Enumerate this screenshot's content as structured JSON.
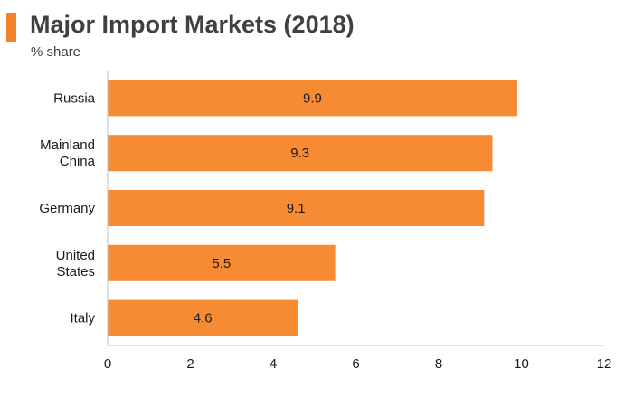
{
  "colors": {
    "accent": "#f5812a",
    "bar": "#f68b33",
    "axis": "#c0c0c0",
    "text": "#404040"
  },
  "chart_data": {
    "type": "bar",
    "orientation": "horizontal",
    "title": "Major Import Markets (2018)",
    "subtitle": "% share",
    "categories": [
      "Russia",
      "Mainland China",
      "Germany",
      "United States",
      "Italy"
    ],
    "category_lines": [
      [
        "Russia"
      ],
      [
        "Mainland",
        "China"
      ],
      [
        "Germany"
      ],
      [
        "United",
        "States"
      ],
      [
        "Italy"
      ]
    ],
    "values": [
      9.9,
      9.3,
      9.1,
      5.5,
      4.6
    ],
    "value_labels": [
      "9.9",
      "9.3",
      "9.1",
      "5.5",
      "4.6"
    ],
    "xlim": [
      0,
      12
    ],
    "xticks": [
      "0",
      "2",
      "4",
      "6",
      "8",
      "10",
      "12"
    ],
    "grid": false,
    "legend": "none"
  }
}
